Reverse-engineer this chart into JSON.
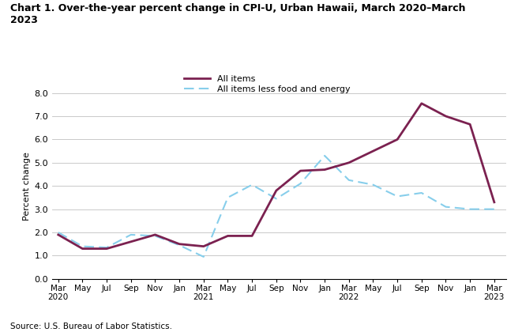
{
  "title_line1": "Chart 1. Over-the-year percent change in CPI-U, Urban Hawaii, March 2020–March",
  "title_line2": "2023",
  "ylabel": "Percent change",
  "source": "Source: U.S. Bureau of Labor Statistics.",
  "ylim": [
    0.0,
    8.0
  ],
  "yticks": [
    0.0,
    1.0,
    2.0,
    3.0,
    4.0,
    5.0,
    6.0,
    7.0,
    8.0
  ],
  "all_items": {
    "label": "All items",
    "color": "#7B2150",
    "linewidth": 2.0,
    "x_vals": [
      0,
      2,
      4,
      6,
      8,
      10,
      12,
      14,
      16,
      18,
      20,
      22,
      24,
      26,
      28,
      30,
      32,
      34,
      36
    ],
    "y_vals": [
      1.9,
      1.3,
      1.3,
      1.6,
      1.9,
      1.5,
      1.4,
      1.85,
      1.85,
      3.8,
      4.65,
      4.7,
      5.0,
      5.5,
      6.0,
      7.55,
      7.0,
      6.65,
      3.3
    ]
  },
  "all_items_less": {
    "label": "All items less food and energy",
    "color": "#87CEEB",
    "linewidth": 1.5,
    "x_vals": [
      0,
      2,
      4,
      6,
      8,
      10,
      12,
      14,
      16,
      18,
      20,
      22,
      24,
      26,
      28,
      30,
      32,
      34,
      36
    ],
    "y_vals": [
      2.0,
      1.4,
      1.35,
      1.9,
      1.85,
      1.45,
      0.95,
      3.5,
      4.05,
      3.45,
      4.1,
      5.3,
      4.25,
      4.05,
      3.55,
      3.7,
      3.1,
      3.0,
      3.0
    ]
  },
  "tick_positions": [
    0,
    2,
    4,
    6,
    8,
    10,
    12,
    14,
    16,
    18,
    20,
    22,
    24,
    26,
    28,
    30,
    32,
    34,
    36
  ],
  "tick_month_labels": [
    "Mar",
    "May",
    "Jul",
    "Sep",
    "Nov",
    "Jan",
    "Mar",
    "May",
    "Jul",
    "Sep",
    "Nov",
    "Jan",
    "Mar",
    "May",
    "Jul",
    "Sep",
    "Nov",
    "Jan",
    "Mar"
  ],
  "tick_year_labels": [
    "2020",
    "",
    "",
    "",
    "",
    "",
    "2021",
    "",
    "",
    "",
    "",
    "",
    "2022",
    "",
    "",
    "",
    "",
    "",
    "2023"
  ],
  "background_color": "#ffffff",
  "plot_bg_color": "#ffffff"
}
